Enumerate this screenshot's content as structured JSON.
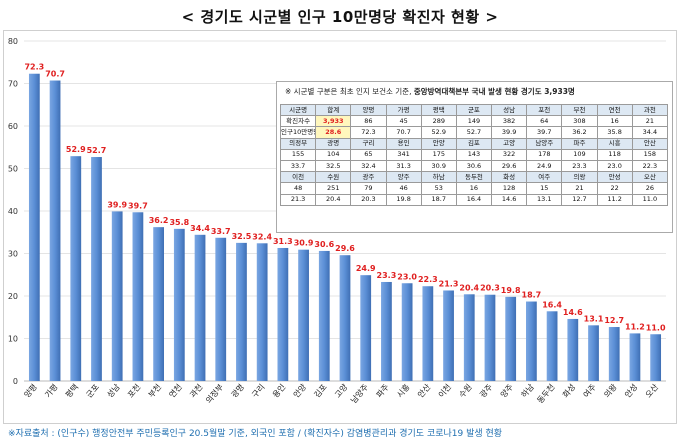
{
  "title": "< 경기도 시군별 인구 10만명당 확진자 현황 >",
  "source": "※자료출처 : (인구수) 행정안전부 주민등록인구 20.5월말 기준, 외국인 포함 / (확진자수) 감염병관리과 경기도 코로나19 발생 현황",
  "colors": {
    "bar": "#5b8fd6",
    "bar_dark": "#3f6fb4",
    "value_label": "#e02020",
    "highlight": "#fff7bd"
  },
  "chart_data": {
    "type": "bar",
    "categories": [
      "양평",
      "가평",
      "평택",
      "군포",
      "성남",
      "포천",
      "부천",
      "연천",
      "과천",
      "의정부",
      "광명",
      "구리",
      "용인",
      "안양",
      "김포",
      "고양",
      "남양주",
      "파주",
      "시흥",
      "안산",
      "이천",
      "수원",
      "광주",
      "양주",
      "하남",
      "동두천",
      "화성",
      "여주",
      "의왕",
      "안성",
      "오산"
    ],
    "values": [
      72.3,
      70.7,
      52.9,
      52.7,
      39.9,
      39.7,
      36.2,
      35.8,
      34.4,
      33.7,
      32.5,
      32.4,
      31.3,
      30.9,
      30.6,
      29.6,
      24.9,
      23.3,
      23.0,
      22.3,
      21.3,
      20.4,
      20.3,
      19.8,
      18.7,
      16.4,
      14.6,
      13.1,
      12.7,
      11.2,
      11.0
    ],
    "value_labels": [
      "72.3",
      "70.7",
      "52.9",
      "52.7",
      "39.9",
      "39.7",
      "36.2",
      "35.8",
      "34.4",
      "33.7",
      "32.5",
      "32.4",
      "31.3",
      "30.9",
      "30.6",
      "29.6",
      "24.9",
      "23.3",
      "23.0",
      "22.3",
      "21.3",
      "20.4",
      "20.3",
      "19.8",
      "18.7",
      "16.4",
      "14.6",
      "13.1",
      "12.7",
      "11.2",
      "11.0"
    ],
    "title": "< 경기도 시군별 인구 10만명당 확진자 현황 >",
    "xlabel": "",
    "ylabel": "",
    "ylim": [
      0,
      80
    ],
    "yticks": [
      0,
      10,
      20,
      30,
      40,
      50,
      60,
      70,
      80
    ],
    "grid": true,
    "legend": "none"
  },
  "info_box": {
    "caption_prefix": "※ 시군별 구분은 최초 인지 보건소 기준, ",
    "caption_bold": "중앙방역대책본부 국내 발생 현황 경기도 3,933명",
    "rows": [
      [
        "시군명",
        "합계",
        "양평",
        "가평",
        "평택",
        "군포",
        "성남",
        "포천",
        "부천",
        "연천",
        "과천"
      ],
      [
        "확진자수",
        "3,933",
        "86",
        "45",
        "289",
        "149",
        "382",
        "64",
        "308",
        "16",
        "21"
      ],
      [
        "인구10만명당",
        "28.6",
        "72.3",
        "70.7",
        "52.9",
        "52.7",
        "39.9",
        "39.7",
        "36.2",
        "35.8",
        "34.4"
      ],
      [
        "의정부",
        "광명",
        "구리",
        "용인",
        "안양",
        "김포",
        "고양",
        "남양주",
        "파주",
        "시흥",
        "안산"
      ],
      [
        "155",
        "104",
        "65",
        "341",
        "175",
        "143",
        "322",
        "178",
        "109",
        "118",
        "158"
      ],
      [
        "33.7",
        "32.5",
        "32.4",
        "31.3",
        "30.9",
        "30.6",
        "29.6",
        "24.9",
        "23.3",
        "23.0",
        "22.3"
      ],
      [
        "이천",
        "수원",
        "광주",
        "양주",
        "하남",
        "동두천",
        "화성",
        "여주",
        "의왕",
        "안성",
        "오산"
      ],
      [
        "48",
        "251",
        "79",
        "46",
        "53",
        "16",
        "128",
        "15",
        "21",
        "22",
        "26"
      ],
      [
        "21.3",
        "20.4",
        "20.3",
        "19.8",
        "18.7",
        "16.4",
        "14.6",
        "13.1",
        "12.7",
        "11.2",
        "11.0"
      ]
    ]
  }
}
